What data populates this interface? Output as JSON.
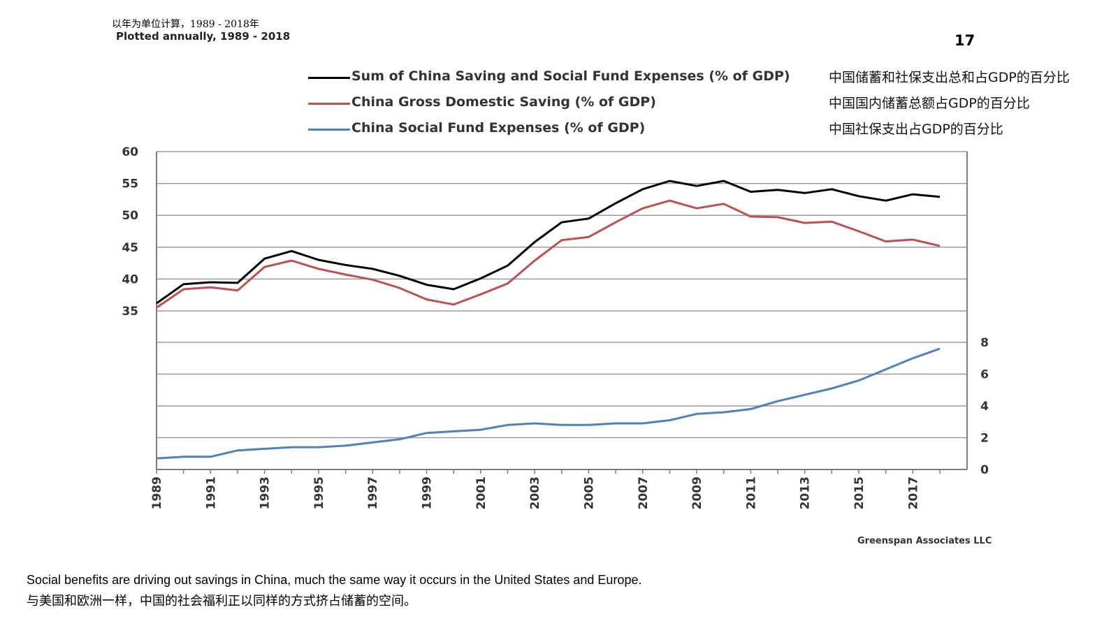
{
  "header": {
    "subtitle_cn": "以年为单位计算，1989 - 2018年",
    "subtitle_en": "Plotted annually, 1989 - 2018",
    "page_number": "17"
  },
  "legend": [
    {
      "label": "Sum of China Saving and Social Fund Expenses (% of GDP)",
      "label_cn": "中国储蓄和社保支出总和占GDP的百分比",
      "color": "#000000"
    },
    {
      "label": "China Gross Domestic Saving (% of GDP)",
      "label_cn": "中国国内储蓄总额占GDP的百分比",
      "color": "#c0504d"
    },
    {
      "label": "China Social Fund Expenses (% of GDP)",
      "label_cn": "中国社保支出占GDP的百分比",
      "color": "#4f81bd"
    }
  ],
  "chart_data": {
    "type": "line",
    "x": [
      1989,
      1990,
      1991,
      1992,
      1993,
      1994,
      1995,
      1996,
      1997,
      1998,
      1999,
      2000,
      2001,
      2002,
      2003,
      2004,
      2005,
      2006,
      2007,
      2008,
      2009,
      2010,
      2011,
      2012,
      2013,
      2014,
      2015,
      2016,
      2017,
      2018
    ],
    "x_tick_labels": [
      "1989",
      "1991",
      "1993",
      "1995",
      "1997",
      "1999",
      "2001",
      "2003",
      "2005",
      "2007",
      "2009",
      "2011",
      "2013",
      "2015",
      "2017"
    ],
    "left_axis": {
      "ylim": [
        35,
        60
      ],
      "ticks": [
        "35",
        "40",
        "45",
        "50",
        "55",
        "60"
      ]
    },
    "right_axis": {
      "ylim": [
        0,
        8
      ],
      "ticks": [
        "0",
        "2",
        "4",
        "6",
        "8"
      ]
    },
    "grid": true,
    "series": [
      {
        "name": "Sum of China Saving and Social Fund Expenses (% of GDP)",
        "axis": "left",
        "color": "#000000",
        "values": [
          36.2,
          39.2,
          39.5,
          39.4,
          43.2,
          44.4,
          43.0,
          42.2,
          41.6,
          40.5,
          39.1,
          38.4,
          40.1,
          42.1,
          45.8,
          48.9,
          49.5,
          51.9,
          54.1,
          55.4,
          54.6,
          55.4,
          53.7,
          54.0,
          53.5,
          54.1,
          53.0,
          52.3,
          53.3,
          52.9
        ]
      },
      {
        "name": "China Gross Domestic Saving (% of GDP)",
        "axis": "left",
        "color": "#c0504d",
        "values": [
          35.5,
          38.4,
          38.7,
          38.2,
          41.9,
          42.9,
          41.6,
          40.7,
          39.9,
          38.6,
          36.8,
          36.0,
          37.6,
          39.3,
          42.9,
          46.1,
          46.6,
          48.9,
          51.1,
          52.3,
          51.1,
          51.8,
          49.8,
          49.7,
          48.8,
          49.0,
          47.5,
          45.9,
          46.2,
          45.2
        ]
      },
      {
        "name": "China Social Fund Expenses (% of GDP)",
        "axis": "right",
        "color": "#4f81bd",
        "values": [
          0.7,
          0.8,
          0.8,
          1.2,
          1.3,
          1.4,
          1.4,
          1.5,
          1.7,
          1.9,
          2.3,
          2.4,
          2.5,
          2.8,
          2.9,
          2.8,
          2.8,
          2.9,
          2.9,
          3.1,
          3.5,
          3.6,
          3.8,
          4.3,
          4.7,
          5.1,
          5.6,
          6.3,
          7.0,
          7.6
        ]
      }
    ]
  },
  "source": "Greenspan Associates LLC",
  "caption": {
    "en": "Social benefits are driving out savings in China, much the same way it occurs in the United States and Europe.",
    "cn": "与美国和欧洲一样，中国的社会福利正以同样的方式挤占储蓄的空间。"
  }
}
